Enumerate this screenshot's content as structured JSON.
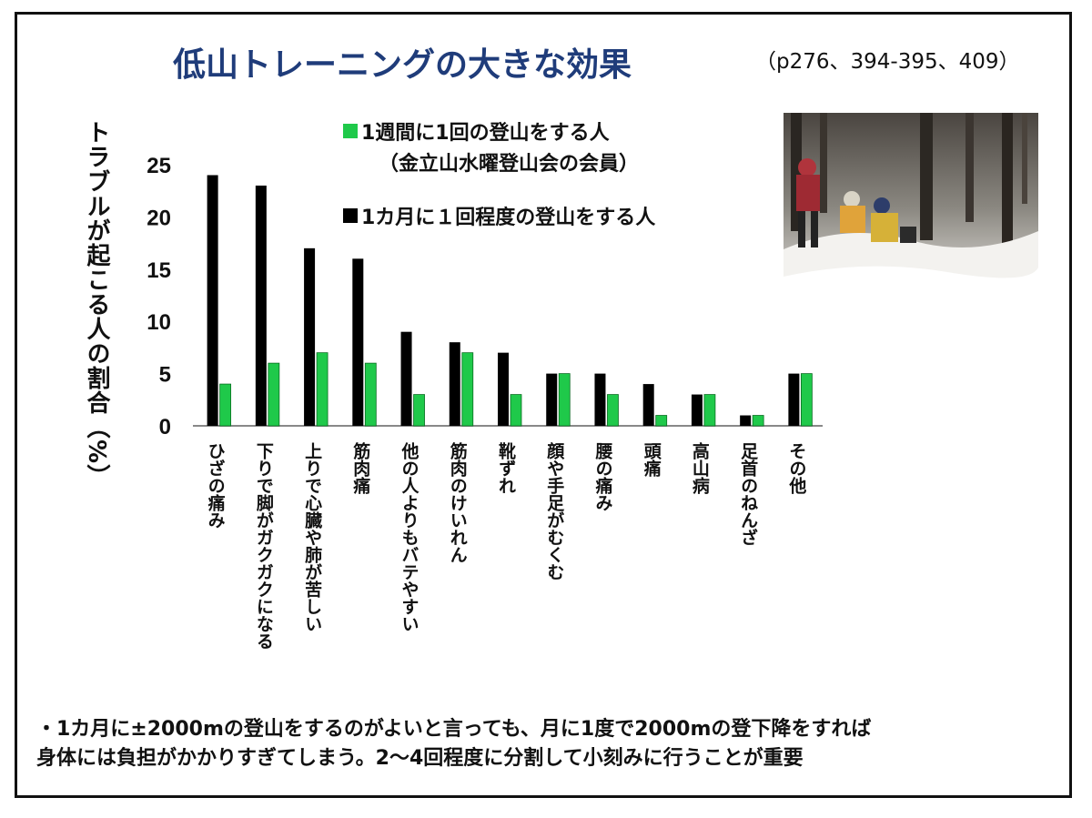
{
  "title": "低山トレーニングの大きな効果",
  "page_ref": "（p276、394-395、409）",
  "note": {
    "line1": "・1カ月に±2000mの登山をするのがよいと言っても、月に1度で2000mの登下降をすれば",
    "line2": "身体には負担がかかりすぎてしまう。2～4回程度に分割して小刻みに行うことが重要"
  },
  "photo": {
    "description_icon": "snow-hiking-photo"
  },
  "colors": {
    "green": "#1fc94a",
    "black": "#000000",
    "title": "#1f3c7a"
  },
  "legend": {
    "green_label": "1週間に1回の登山をする人",
    "green_sub": "（金立山水曜登山会の会員）",
    "black_label": "1カ月に１回程度の登山をする人"
  },
  "chart_data": {
    "type": "bar",
    "ylabel": "トラブルが起こる人の割合（%）",
    "ylim": [
      0,
      25
    ],
    "yticks": [
      0,
      5,
      10,
      15,
      20,
      25
    ],
    "categories": [
      "ひざの痛み",
      "下りで脚がガクガクになる",
      "上りで心臓や肺が苦しい",
      "筋肉痛",
      "他の人よりもバテやすい",
      "筋肉のけいれん",
      "靴ずれ",
      "顔や手足がむくむ",
      "腰の痛み",
      "頭痛",
      "高山病",
      "足首のねんざ",
      "その他"
    ],
    "series": [
      {
        "name": "1カ月に１回程度の登山をする人",
        "color": "#000000",
        "values": [
          24,
          23,
          17,
          16,
          9,
          8,
          7,
          5,
          5,
          4,
          3,
          1,
          5
        ]
      },
      {
        "name": "1週間に1回の登山をする人",
        "color": "#1fc94a",
        "values": [
          4,
          6,
          7,
          6,
          3,
          7,
          3,
          5,
          3,
          1,
          3,
          1,
          5
        ]
      }
    ],
    "grid": false
  }
}
